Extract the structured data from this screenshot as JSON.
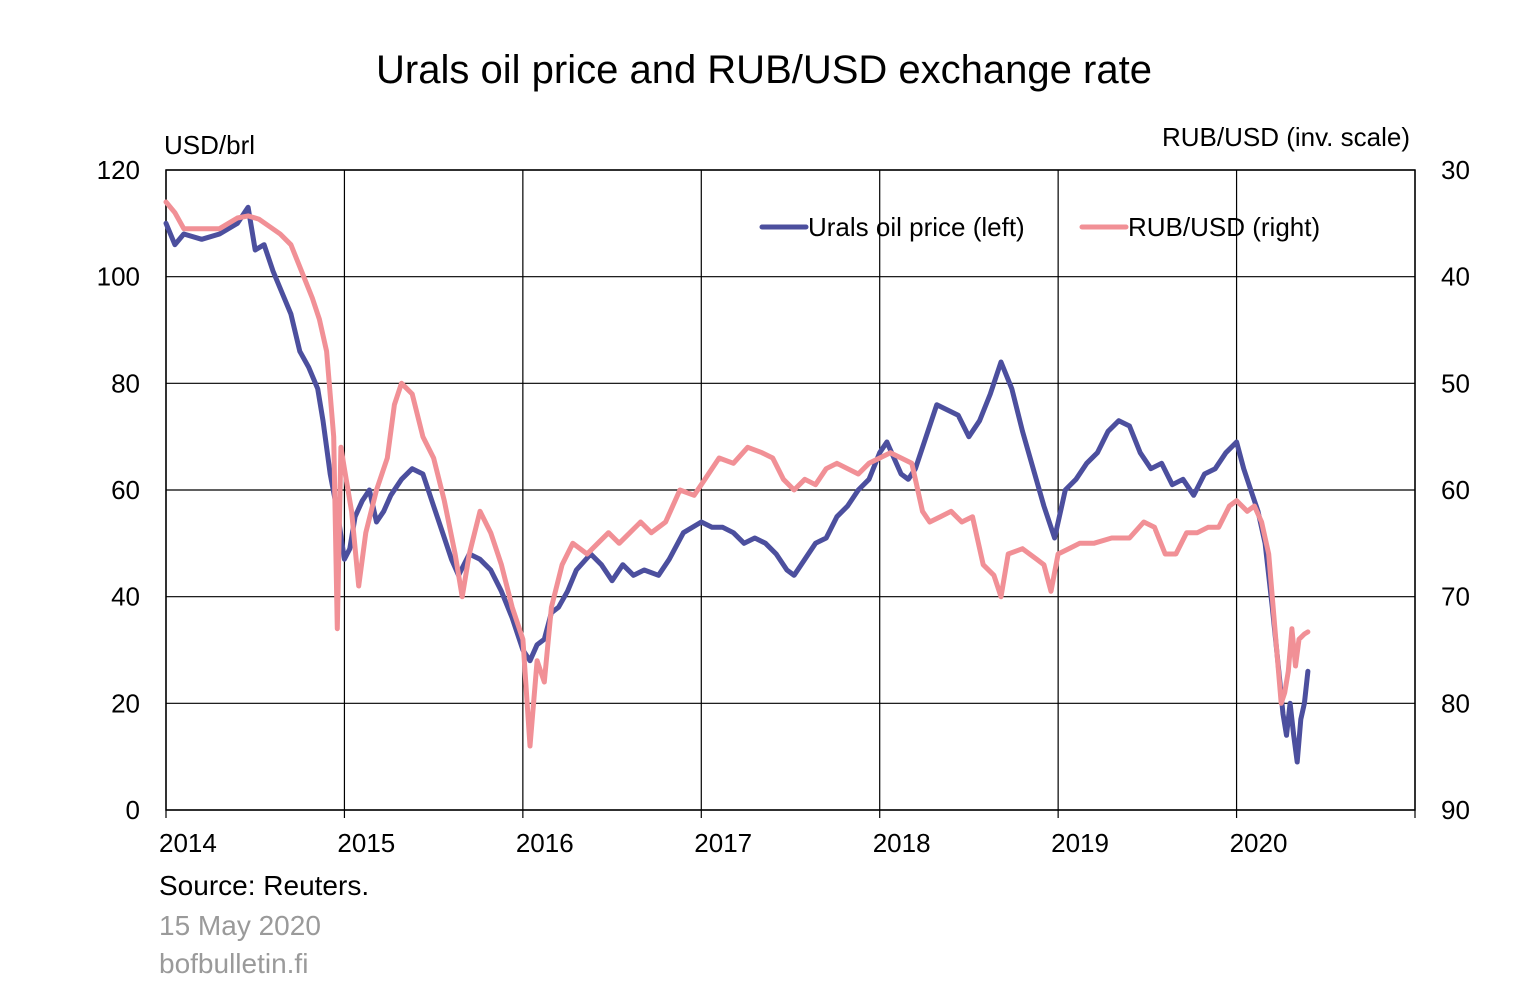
{
  "title": "Urals oil price and RUB/USD exchange rate",
  "footer": {
    "source": "Source: Reuters.",
    "date": "15 May 2020",
    "site": "bofbulletin.fi"
  },
  "colors": {
    "urals": "#4c4f9e",
    "rub": "#f19096",
    "grid": "#000000"
  },
  "chart_data": {
    "type": "line",
    "title": "Urals oil price and RUB/USD exchange rate",
    "left_axis": {
      "label": "USD/brl",
      "ticks": [
        0,
        20,
        40,
        60,
        80,
        100,
        120
      ],
      "range": [
        0,
        120
      ]
    },
    "right_axis": {
      "label": "RUB/USD (inv. scale)",
      "ticks": [
        30,
        40,
        50,
        60,
        70,
        80,
        90
      ],
      "range": [
        30,
        90
      ],
      "inverted": true
    },
    "x_axis": {
      "tick_labels": [
        "2014",
        "2015",
        "2016",
        "2017",
        "2018",
        "2019",
        "2020"
      ],
      "range": [
        2014.0,
        2021.0
      ]
    },
    "grid": true,
    "legend_position": "top-right",
    "series": [
      {
        "name": "Urals oil price (left)",
        "axis": "left",
        "points": [
          [
            2014.0,
            110
          ],
          [
            2014.05,
            106
          ],
          [
            2014.1,
            108
          ],
          [
            2014.2,
            107
          ],
          [
            2014.3,
            108
          ],
          [
            2014.4,
            110
          ],
          [
            2014.46,
            113
          ],
          [
            2014.5,
            105
          ],
          [
            2014.55,
            106
          ],
          [
            2014.6,
            101
          ],
          [
            2014.65,
            97
          ],
          [
            2014.7,
            93
          ],
          [
            2014.75,
            86
          ],
          [
            2014.8,
            83
          ],
          [
            2014.85,
            79
          ],
          [
            2014.88,
            73
          ],
          [
            2014.92,
            63
          ],
          [
            2014.96,
            56
          ],
          [
            2015.0,
            47
          ],
          [
            2015.03,
            49
          ],
          [
            2015.06,
            55
          ],
          [
            2015.1,
            58
          ],
          [
            2015.14,
            60
          ],
          [
            2015.18,
            54
          ],
          [
            2015.22,
            56
          ],
          [
            2015.26,
            59
          ],
          [
            2015.32,
            62
          ],
          [
            2015.38,
            64
          ],
          [
            2015.44,
            63
          ],
          [
            2015.5,
            57
          ],
          [
            2015.55,
            52
          ],
          [
            2015.6,
            47
          ],
          [
            2015.64,
            44
          ],
          [
            2015.7,
            48
          ],
          [
            2015.76,
            47
          ],
          [
            2015.82,
            45
          ],
          [
            2015.88,
            41
          ],
          [
            2015.94,
            36
          ],
          [
            2016.0,
            30
          ],
          [
            2016.04,
            28
          ],
          [
            2016.08,
            31
          ],
          [
            2016.12,
            32
          ],
          [
            2016.16,
            37
          ],
          [
            2016.2,
            38
          ],
          [
            2016.25,
            41
          ],
          [
            2016.3,
            45
          ],
          [
            2016.38,
            48
          ],
          [
            2016.44,
            46
          ],
          [
            2016.5,
            43
          ],
          [
            2016.56,
            46
          ],
          [
            2016.62,
            44
          ],
          [
            2016.68,
            45
          ],
          [
            2016.76,
            44
          ],
          [
            2016.82,
            47
          ],
          [
            2016.9,
            52
          ],
          [
            2017.0,
            54
          ],
          [
            2017.06,
            53
          ],
          [
            2017.12,
            53
          ],
          [
            2017.18,
            52
          ],
          [
            2017.24,
            50
          ],
          [
            2017.3,
            51
          ],
          [
            2017.36,
            50
          ],
          [
            2017.42,
            48
          ],
          [
            2017.48,
            45
          ],
          [
            2017.52,
            44
          ],
          [
            2017.58,
            47
          ],
          [
            2017.64,
            50
          ],
          [
            2017.7,
            51
          ],
          [
            2017.76,
            55
          ],
          [
            2017.82,
            57
          ],
          [
            2017.88,
            60
          ],
          [
            2017.94,
            62
          ],
          [
            2018.0,
            67
          ],
          [
            2018.04,
            69
          ],
          [
            2018.08,
            66
          ],
          [
            2018.12,
            63
          ],
          [
            2018.16,
            62
          ],
          [
            2018.2,
            64
          ],
          [
            2018.26,
            70
          ],
          [
            2018.32,
            76
          ],
          [
            2018.38,
            75
          ],
          [
            2018.44,
            74
          ],
          [
            2018.5,
            70
          ],
          [
            2018.56,
            73
          ],
          [
            2018.62,
            78
          ],
          [
            2018.68,
            84
          ],
          [
            2018.74,
            79
          ],
          [
            2018.8,
            71
          ],
          [
            2018.86,
            64
          ],
          [
            2018.92,
            57
          ],
          [
            2018.98,
            51
          ],
          [
            2019.04,
            60
          ],
          [
            2019.1,
            62
          ],
          [
            2019.16,
            65
          ],
          [
            2019.22,
            67
          ],
          [
            2019.28,
            71
          ],
          [
            2019.34,
            73
          ],
          [
            2019.4,
            72
          ],
          [
            2019.46,
            67
          ],
          [
            2019.52,
            64
          ],
          [
            2019.58,
            65
          ],
          [
            2019.64,
            61
          ],
          [
            2019.7,
            62
          ],
          [
            2019.76,
            59
          ],
          [
            2019.82,
            63
          ],
          [
            2019.88,
            64
          ],
          [
            2019.94,
            67
          ],
          [
            2020.0,
            69
          ],
          [
            2020.04,
            64
          ],
          [
            2020.08,
            60
          ],
          [
            2020.12,
            56
          ],
          [
            2020.16,
            50
          ],
          [
            2020.2,
            38
          ],
          [
            2020.24,
            25
          ],
          [
            2020.26,
            18
          ],
          [
            2020.28,
            14
          ],
          [
            2020.3,
            20
          ],
          [
            2020.32,
            14
          ],
          [
            2020.34,
            9
          ],
          [
            2020.36,
            17
          ],
          [
            2020.38,
            20
          ],
          [
            2020.4,
            26
          ]
        ]
      },
      {
        "name": "RUB/USD (right)",
        "axis": "right",
        "points": [
          [
            2014.0,
            33
          ],
          [
            2014.05,
            34
          ],
          [
            2014.1,
            35.5
          ],
          [
            2014.2,
            35.5
          ],
          [
            2014.3,
            35.5
          ],
          [
            2014.4,
            34.5
          ],
          [
            2014.46,
            34.3
          ],
          [
            2014.52,
            34.6
          ],
          [
            2014.58,
            35.3
          ],
          [
            2014.64,
            36
          ],
          [
            2014.7,
            37
          ],
          [
            2014.76,
            39.5
          ],
          [
            2014.82,
            42
          ],
          [
            2014.86,
            44
          ],
          [
            2014.9,
            47
          ],
          [
            2014.94,
            55
          ],
          [
            2014.96,
            73
          ],
          [
            2014.98,
            56
          ],
          [
            2015.0,
            58
          ],
          [
            2015.04,
            62
          ],
          [
            2015.08,
            69
          ],
          [
            2015.12,
            64
          ],
          [
            2015.18,
            60
          ],
          [
            2015.24,
            57
          ],
          [
            2015.28,
            52
          ],
          [
            2015.32,
            50
          ],
          [
            2015.38,
            51
          ],
          [
            2015.44,
            55
          ],
          [
            2015.5,
            57
          ],
          [
            2015.56,
            61
          ],
          [
            2015.62,
            66
          ],
          [
            2015.66,
            70
          ],
          [
            2015.7,
            66
          ],
          [
            2015.76,
            62
          ],
          [
            2015.82,
            64
          ],
          [
            2015.88,
            67
          ],
          [
            2015.94,
            71
          ],
          [
            2016.0,
            74
          ],
          [
            2016.04,
            84
          ],
          [
            2016.08,
            76
          ],
          [
            2016.12,
            78
          ],
          [
            2016.16,
            71
          ],
          [
            2016.22,
            67
          ],
          [
            2016.28,
            65
          ],
          [
            2016.36,
            66
          ],
          [
            2016.42,
            65
          ],
          [
            2016.48,
            64
          ],
          [
            2016.54,
            65
          ],
          [
            2016.6,
            64
          ],
          [
            2016.66,
            63
          ],
          [
            2016.72,
            64
          ],
          [
            2016.8,
            63
          ],
          [
            2016.88,
            60
          ],
          [
            2016.96,
            60.5
          ],
          [
            2017.02,
            59
          ],
          [
            2017.1,
            57
          ],
          [
            2017.18,
            57.5
          ],
          [
            2017.26,
            56
          ],
          [
            2017.34,
            56.5
          ],
          [
            2017.4,
            57
          ],
          [
            2017.46,
            59
          ],
          [
            2017.52,
            60
          ],
          [
            2017.58,
            59
          ],
          [
            2017.64,
            59.5
          ],
          [
            2017.7,
            58
          ],
          [
            2017.76,
            57.5
          ],
          [
            2017.82,
            58
          ],
          [
            2017.88,
            58.5
          ],
          [
            2017.94,
            57.5
          ],
          [
            2018.0,
            57
          ],
          [
            2018.06,
            56.5
          ],
          [
            2018.12,
            57
          ],
          [
            2018.18,
            57.5
          ],
          [
            2018.24,
            62
          ],
          [
            2018.28,
            63
          ],
          [
            2018.34,
            62.5
          ],
          [
            2018.4,
            62
          ],
          [
            2018.46,
            63
          ],
          [
            2018.52,
            62.5
          ],
          [
            2018.58,
            67
          ],
          [
            2018.64,
            68
          ],
          [
            2018.68,
            70
          ],
          [
            2018.72,
            66
          ],
          [
            2018.8,
            65.5
          ],
          [
            2018.88,
            66.5
          ],
          [
            2018.92,
            67
          ],
          [
            2018.96,
            69.5
          ],
          [
            2019.0,
            66
          ],
          [
            2019.06,
            65.5
          ],
          [
            2019.12,
            65
          ],
          [
            2019.2,
            65
          ],
          [
            2019.3,
            64.5
          ],
          [
            2019.4,
            64.5
          ],
          [
            2019.48,
            63
          ],
          [
            2019.54,
            63.5
          ],
          [
            2019.6,
            66
          ],
          [
            2019.66,
            66
          ],
          [
            2019.72,
            64
          ],
          [
            2019.78,
            64
          ],
          [
            2019.84,
            63.5
          ],
          [
            2019.9,
            63.5
          ],
          [
            2019.96,
            61.5
          ],
          [
            2020.0,
            61
          ],
          [
            2020.06,
            62
          ],
          [
            2020.1,
            61.5
          ],
          [
            2020.14,
            63
          ],
          [
            2020.18,
            66
          ],
          [
            2020.22,
            74
          ],
          [
            2020.25,
            80
          ],
          [
            2020.27,
            79
          ],
          [
            2020.29,
            77
          ],
          [
            2020.31,
            73
          ],
          [
            2020.33,
            76.5
          ],
          [
            2020.35,
            74
          ],
          [
            2020.38,
            73.5
          ],
          [
            2020.4,
            73.3
          ]
        ]
      }
    ]
  }
}
